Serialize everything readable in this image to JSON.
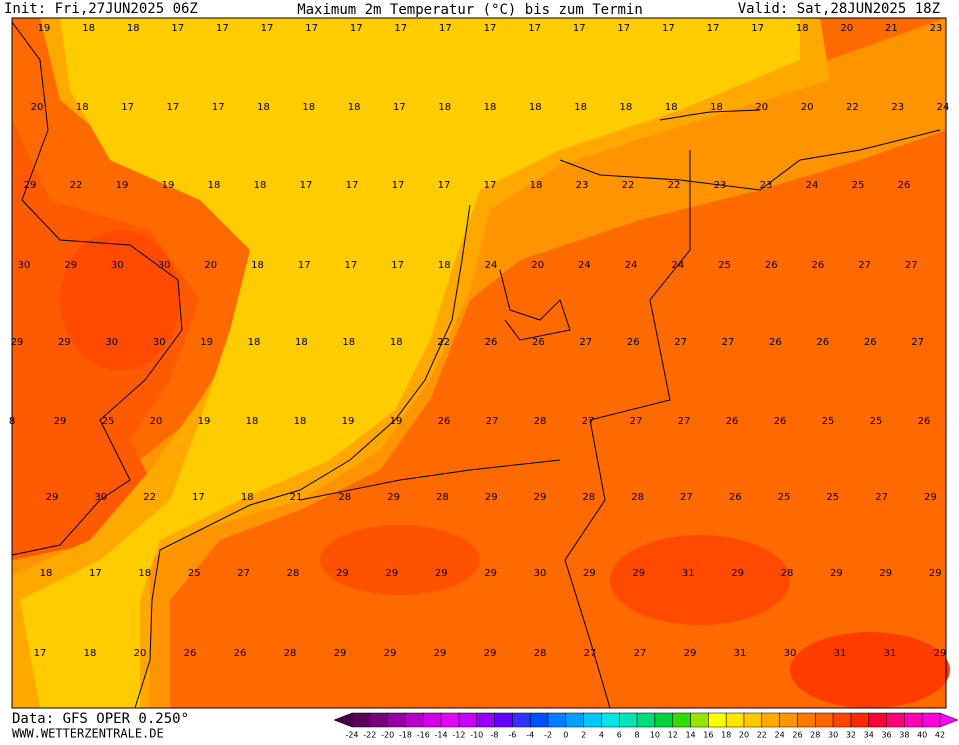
{
  "header": {
    "init": "Init: Fri,27JUN2025 06Z",
    "title": "Maximum 2m Temperatur (°C) bis zum Termin",
    "valid": "Valid: Sat,28JUN2025 18Z"
  },
  "footer": {
    "data": "Data: GFS OPER 0.250°",
    "site": "WWW.WETTERZENTRALE.DE"
  },
  "map_labels": [
    [
      19,
      18,
      18,
      17,
      17,
      17,
      17,
      17,
      17,
      17,
      17,
      17,
      17,
      17,
      17,
      17,
      17,
      18,
      20,
      21,
      23
    ],
    [
      20,
      18,
      17,
      17,
      17,
      18,
      18,
      18,
      17,
      18,
      18,
      18,
      18,
      18,
      18,
      18,
      20,
      20,
      22,
      23,
      24
    ],
    [
      29,
      22,
      19,
      19,
      18,
      18,
      17,
      17,
      17,
      17,
      17,
      18,
      23,
      22,
      22,
      23,
      23,
      24,
      25,
      26
    ],
    [
      30,
      29,
      30,
      30,
      20,
      18,
      17,
      17,
      17,
      18,
      24,
      20,
      24,
      24,
      24,
      25,
      26,
      26,
      27,
      27
    ],
    [
      29,
      29,
      30,
      30,
      19,
      18,
      18,
      18,
      18,
      22,
      26,
      26,
      27,
      26,
      27,
      27,
      26,
      26,
      26,
      27
    ],
    [
      8,
      29,
      25,
      20,
      19,
      18,
      18,
      19,
      19,
      26,
      27,
      28,
      27,
      27,
      27,
      26,
      26,
      25,
      25,
      26
    ],
    [
      29,
      30,
      22,
      17,
      18,
      21,
      28,
      29,
      28,
      29,
      29,
      28,
      28,
      27,
      26,
      25,
      25,
      27,
      29
    ],
    [
      18,
      17,
      18,
      25,
      27,
      28,
      29,
      29,
      29,
      29,
      30,
      29,
      29,
      31,
      29,
      28,
      29,
      29,
      29
    ],
    [
      17,
      18,
      20,
      26,
      26,
      28,
      29,
      29,
      29,
      29,
      28,
      27,
      27,
      29,
      31,
      30,
      31,
      31,
      29
    ]
  ],
  "colorbar": {
    "ticks": [
      -24,
      -22,
      -20,
      -18,
      -16,
      -14,
      -12,
      -10,
      -8,
      -6,
      -4,
      -2,
      0,
      2,
      4,
      6,
      8,
      10,
      12,
      14,
      16,
      18,
      20,
      22,
      24,
      26,
      28,
      30,
      32,
      34,
      36,
      38,
      40,
      42
    ],
    "colors": [
      "#5a005a",
      "#780078",
      "#9600a0",
      "#b400c8",
      "#d200e6",
      "#e600ff",
      "#c800ff",
      "#9600ff",
      "#6400ff",
      "#3232ff",
      "#0050ff",
      "#0080ff",
      "#00a0ff",
      "#00c8ff",
      "#00e6e6",
      "#00e6b4",
      "#00dc78",
      "#00d23c",
      "#32dc00",
      "#96e600",
      "#ffff00",
      "#ffe600",
      "#ffc800",
      "#ffaa00",
      "#ff9600",
      "#ff7800",
      "#ff6400",
      "#ff4600",
      "#ff2800",
      "#ff0032",
      "#ff0078",
      "#ff00b4",
      "#ff00dc"
    ],
    "low_color": "#460046",
    "high_color": "#ff00ff"
  }
}
